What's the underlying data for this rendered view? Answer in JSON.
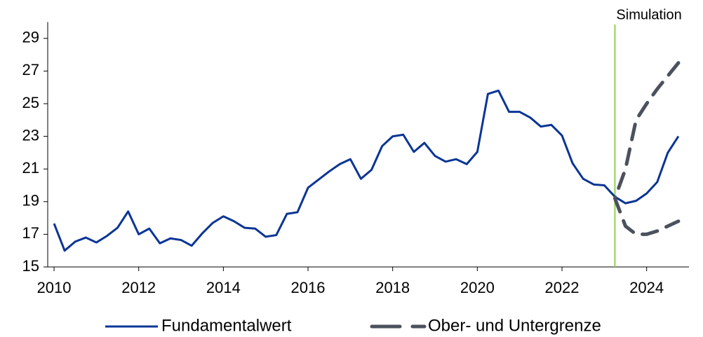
{
  "chart_data": {
    "type": "line",
    "x": [
      2010,
      2010.25,
      2010.5,
      2010.75,
      2011,
      2011.25,
      2011.5,
      2011.75,
      2012,
      2012.25,
      2012.5,
      2012.75,
      2013,
      2013.25,
      2013.5,
      2013.75,
      2014,
      2014.25,
      2014.5,
      2014.75,
      2015,
      2015.25,
      2015.5,
      2015.75,
      2016,
      2016.25,
      2016.5,
      2016.75,
      2017,
      2017.25,
      2017.5,
      2017.75,
      2018,
      2018.25,
      2018.5,
      2018.75,
      2019,
      2019.25,
      2019.5,
      2019.75,
      2020,
      2020.25,
      2020.5,
      2020.75,
      2021,
      2021.25,
      2021.5,
      2021.75,
      2022,
      2022.25,
      2022.5,
      2022.75,
      2023,
      2023.25,
      2023.5,
      2023.75,
      2024,
      2024.25,
      2024.5,
      2024.75
    ],
    "series": [
      {
        "name": "Fundamentalwert",
        "color": "#0a3595",
        "style": "solid",
        "values": [
          17.66,
          16.0,
          16.55,
          16.8,
          16.5,
          16.9,
          17.4,
          18.4,
          17.0,
          17.35,
          16.45,
          16.75,
          16.65,
          16.3,
          17.05,
          17.7,
          18.1,
          17.8,
          17.4,
          17.35,
          16.85,
          16.95,
          18.25,
          18.35,
          19.85,
          20.35,
          20.85,
          21.3,
          21.6,
          20.4,
          20.95,
          22.4,
          23.0,
          23.1,
          22.05,
          22.6,
          21.8,
          21.45,
          21.6,
          21.3,
          22.05,
          25.6,
          25.8,
          24.5,
          24.5,
          24.15,
          23.6,
          23.7,
          23.05,
          21.35,
          20.4,
          20.05,
          20.0,
          19.3,
          18.9,
          19.05,
          19.5,
          20.2,
          22.0,
          23.0
        ]
      },
      {
        "name": "Ober- und Untergrenze",
        "color": "#4b515d",
        "style": "dashed",
        "x": [
          2024.75,
          2024.5,
          2024.25,
          2024,
          2023.75,
          2023.5,
          2023.25,
          2023.5,
          2023.75,
          2024,
          2024.25,
          2024.5,
          2024.75
        ],
        "values": [
          27.5,
          26.7,
          25.9,
          25.0,
          24.0,
          21.0,
          19.2,
          17.5,
          17.0,
          17.0,
          17.2,
          17.5,
          17.8
        ]
      }
    ],
    "xlim": [
      2009.85,
      2025
    ],
    "xticks": [
      2010,
      2012,
      2014,
      2016,
      2018,
      2020,
      2022,
      2024
    ],
    "ylim": [
      15,
      30
    ],
    "yticks": [
      15,
      17,
      19,
      21,
      23,
      25,
      27,
      29
    ],
    "vline": {
      "x": 2023.25,
      "label": "Simulation",
      "color": "#92d050"
    },
    "grid": false
  }
}
